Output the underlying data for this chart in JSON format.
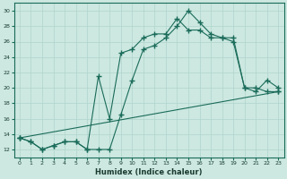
{
  "xlabel": "Humidex (Indice chaleur)",
  "xlim": [
    -0.5,
    23.5
  ],
  "ylim": [
    11,
    31
  ],
  "yticks": [
    12,
    14,
    16,
    18,
    20,
    22,
    24,
    26,
    28,
    30
  ],
  "xticks": [
    0,
    1,
    2,
    3,
    4,
    5,
    6,
    7,
    8,
    9,
    10,
    11,
    12,
    13,
    14,
    15,
    16,
    17,
    18,
    19,
    20,
    21,
    22,
    23
  ],
  "bg_color": "#cce8e0",
  "line_color": "#1a6b5a",
  "grid_color": "#b0d4cc",
  "line1_x": [
    0,
    1,
    2,
    3,
    4,
    5,
    6,
    7,
    8,
    9,
    10,
    11,
    12,
    13,
    14,
    15,
    16,
    17,
    18,
    19,
    20,
    21,
    22,
    23
  ],
  "line1_y": [
    13.5,
    13,
    12,
    12.5,
    13,
    13,
    12,
    12,
    12,
    16.5,
    21,
    25,
    25.5,
    26.5,
    28,
    30,
    28.5,
    27,
    26.5,
    26,
    20,
    19.5,
    21,
    20
  ],
  "line2_x": [
    0,
    1,
    2,
    3,
    4,
    5,
    6,
    7,
    8,
    9,
    10,
    11,
    12,
    13,
    14,
    15,
    16,
    17,
    18,
    19,
    20,
    21,
    22,
    23
  ],
  "line2_y": [
    13.5,
    13,
    12,
    12.5,
    13,
    13,
    12,
    21.5,
    16,
    24.5,
    25,
    26.5,
    27,
    27,
    29,
    27.5,
    27.5,
    26.5,
    26.5,
    26.5,
    20,
    20,
    19.5,
    19.5
  ],
  "line3_x": [
    0,
    23
  ],
  "line3_y": [
    13.5,
    19.5
  ],
  "marker": "+",
  "markersize": 4,
  "linewidth": 0.8
}
